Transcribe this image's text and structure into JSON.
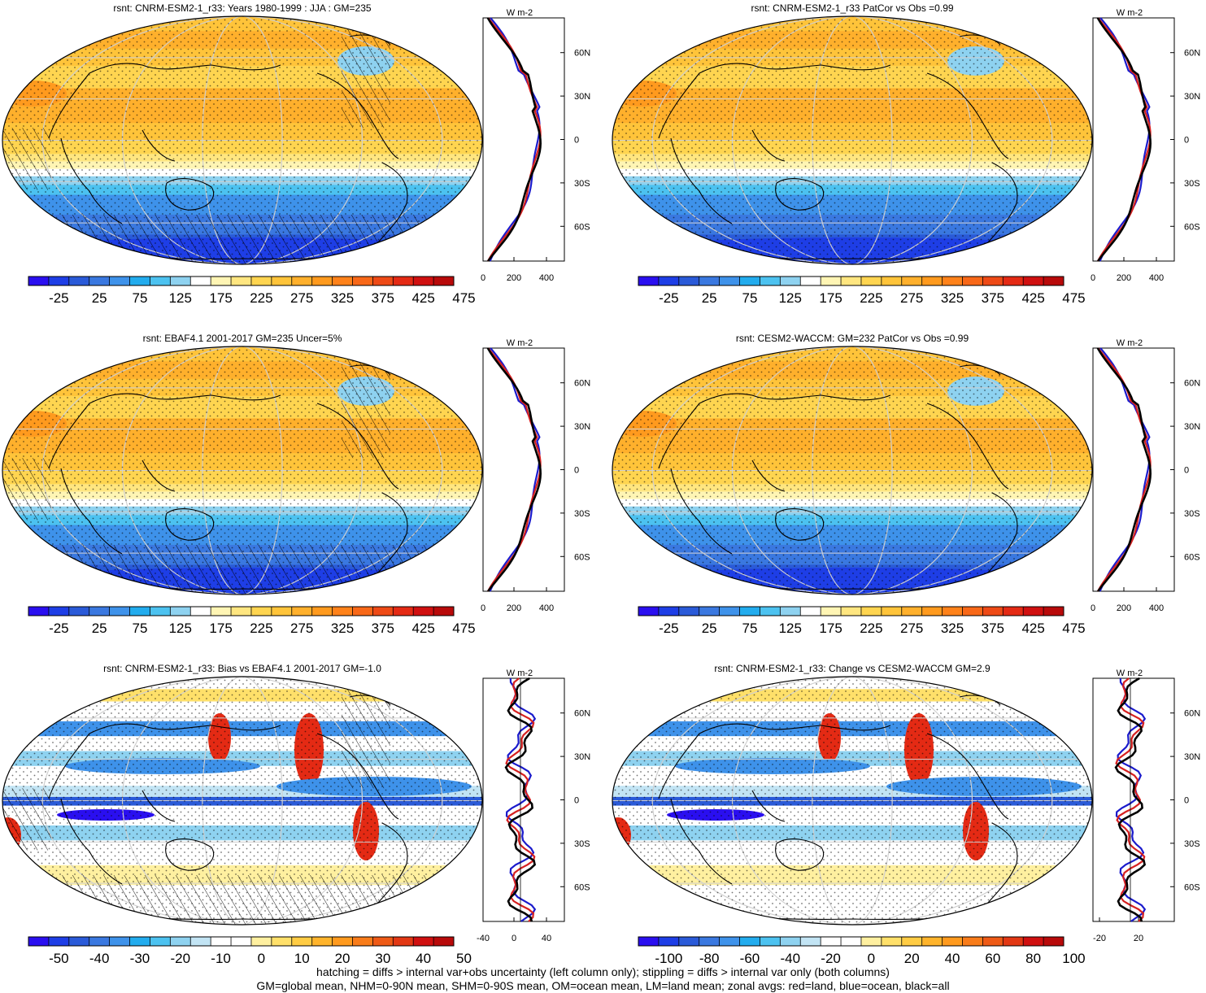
{
  "panels": [
    {
      "id": "p1",
      "title": "rsnt: CNRM-ESM2-1_r33: Years 1980-1999 : JJA : GM=235",
      "kind": "clim",
      "hatch": true,
      "colorbar": [
        "-25",
        "25",
        "75",
        "125",
        "175",
        "225",
        "275",
        "325",
        "375",
        "425",
        "475"
      ],
      "zonal_ticks": [
        "0",
        "200",
        "400"
      ],
      "zonal_unit": "W m-2"
    },
    {
      "id": "p2",
      "title": "rsnt: CNRM-ESM2-1_r33 PatCor vs Obs =0.99",
      "kind": "clim",
      "hatch": false,
      "colorbar": [
        "-25",
        "25",
        "75",
        "125",
        "175",
        "225",
        "275",
        "325",
        "375",
        "425",
        "475"
      ],
      "zonal_ticks": [
        "0",
        "200",
        "400"
      ],
      "zonal_unit": "W m-2"
    },
    {
      "id": "p3",
      "title": "rsnt: EBAF4.1 2001-2017 GM=235 Uncer=5%",
      "kind": "clim",
      "hatch": true,
      "colorbar": [
        "-25",
        "25",
        "75",
        "125",
        "175",
        "225",
        "275",
        "325",
        "375",
        "425",
        "475"
      ],
      "zonal_ticks": [
        "0",
        "200",
        "400"
      ],
      "zonal_unit": "W m-2"
    },
    {
      "id": "p4",
      "title": "rsnt: CESM2-WACCM: GM=232 PatCor vs Obs =0.99",
      "kind": "clim",
      "hatch": false,
      "colorbar": [
        "-25",
        "25",
        "75",
        "125",
        "175",
        "225",
        "275",
        "325",
        "375",
        "425",
        "475"
      ],
      "zonal_ticks": [
        "0",
        "200",
        "400"
      ],
      "zonal_unit": "W m-2"
    },
    {
      "id": "p5",
      "title": "rsnt: CNRM-ESM2-1_r33: Bias vs EBAF4.1 2001-2017 GM=-1.0",
      "kind": "diff",
      "hatch": true,
      "colorbar": [
        "-50",
        "-40",
        "-30",
        "-20",
        "-10",
        "0",
        "10",
        "20",
        "30",
        "40",
        "50"
      ],
      "zonal_ticks": [
        "-40",
        "0",
        "40"
      ],
      "zonal_unit": "W m-2"
    },
    {
      "id": "p6",
      "title": "rsnt: CNRM-ESM2-1_r33: Change vs CESM2-WACCM GM=2.9",
      "kind": "diff",
      "hatch": false,
      "colorbar": [
        "-100",
        "-80",
        "-60",
        "-40",
        "-20",
        "0",
        "20",
        "40",
        "60",
        "80",
        "100"
      ],
      "zonal_ticks": [
        "-20",
        "20"
      ],
      "zonal_unit": "W m-2"
    }
  ],
  "lat_labels": [
    "60N",
    "30N",
    "0",
    "30S",
    "60S"
  ],
  "colors": {
    "clim_scale": [
      "#2a0ff0",
      "#1e3ee6",
      "#2a5ad8",
      "#3a78e0",
      "#3e92ea",
      "#22acee",
      "#4cc2f0",
      "#8ed2f0",
      "#ffffff",
      "#fff5b4",
      "#ffe680",
      "#ffd550",
      "#ffc43a",
      "#ffb02c",
      "#ff9a1e",
      "#ff821a",
      "#f86818",
      "#ee4a16",
      "#e42a14",
      "#d01010",
      "#b80a0a"
    ],
    "diff_scale": [
      "#2a0ff0",
      "#1e3ee6",
      "#2a5ad8",
      "#3a78e0",
      "#3e92ea",
      "#22acee",
      "#4cc2f0",
      "#8ed2f0",
      "#c2e4f4",
      "#ffffff",
      "#ffffff",
      "#fff0a0",
      "#ffe06a",
      "#ffcc44",
      "#ffb42c",
      "#ff9a1e",
      "#f87c1a",
      "#ee5a16",
      "#e23814",
      "#d01010",
      "#b80a0a"
    ],
    "land": "#d62020",
    "ocean": "#1a1acc",
    "all": "#000000"
  },
  "footer": [
    "hatching = diffs > internal var+obs uncertainty (left column only); stippling = diffs > internal var only (both columns)",
    "GM=global mean, NHM=0-90N mean, SHM=0-90S mean, OM=ocean mean, LM=land mean; zonal avgs: red=land, blue=ocean, black=all"
  ]
}
